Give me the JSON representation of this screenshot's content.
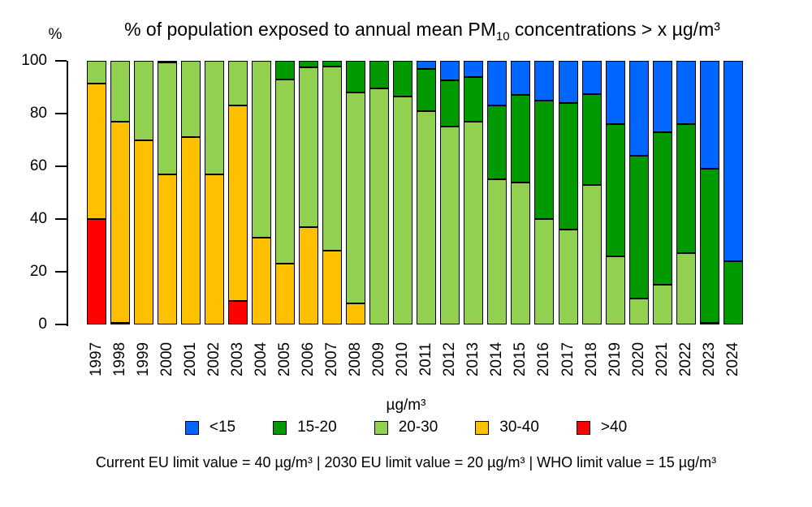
{
  "title": {
    "prefix": "% of population exposed to annual mean PM",
    "sub": "10",
    "suffix": " concentrations > x µg/m³"
  },
  "y_axis": {
    "label": "%",
    "ticks": [
      0,
      20,
      40,
      60,
      80,
      100
    ]
  },
  "legend": {
    "title": "µg/m³",
    "entries": [
      {
        "label": "<15",
        "color": "#0066FF"
      },
      {
        "label": "15-20",
        "color": "#009900"
      },
      {
        "label": "20-30",
        "color": "#92D050"
      },
      {
        "label": "30-40",
        "color": "#FFC000"
      },
      {
        "label": ">40",
        "color": "#FF0000"
      }
    ]
  },
  "footnote": "Current EU limit value = 40 µg/m³ | 2030 EU limit value = 20 µg/m³ | WHO limit value = 15 µg/m³",
  "chart_data": {
    "type": "bar",
    "stacked": true,
    "title": "% of population exposed to annual mean PM10 concentrations > x µg/m³",
    "xlabel": "",
    "ylabel": "%",
    "ylim": [
      0,
      100
    ],
    "grid": false,
    "legend_position": "bottom",
    "categories": [
      1997,
      1998,
      1999,
      2000,
      2001,
      2002,
      2003,
      2004,
      2005,
      2006,
      2007,
      2008,
      2009,
      2010,
      2011,
      2012,
      2013,
      2014,
      2015,
      2016,
      2017,
      2018,
      2019,
      2020,
      2021,
      2022,
      2023,
      2024
    ],
    "series": [
      {
        "name": ">40",
        "color": "#FF0000",
        "values": [
          40,
          0.5,
          0,
          0,
          0,
          0,
          9,
          0,
          0,
          0,
          0,
          0,
          0,
          0,
          0,
          0,
          0,
          0,
          0,
          0,
          0,
          0,
          0,
          0,
          0,
          0,
          0,
          0
        ]
      },
      {
        "name": "30-40",
        "color": "#FFC000",
        "values": [
          51.5,
          76.5,
          70,
          57,
          71,
          57,
          74,
          33,
          23,
          37,
          28,
          8,
          0,
          0,
          0,
          0,
          0,
          0,
          0,
          0,
          0,
          0,
          0,
          0,
          0,
          0,
          0,
          0
        ]
      },
      {
        "name": "20-30",
        "color": "#92D050",
        "values": [
          8.5,
          23,
          30,
          42.5,
          29,
          43,
          17,
          67,
          70,
          60.5,
          70,
          80,
          89.5,
          86.5,
          81,
          75,
          77,
          55,
          54,
          40,
          36,
          53,
          26,
          10,
          15,
          27,
          0.5,
          0
        ]
      },
      {
        "name": "15-20",
        "color": "#009900",
        "values": [
          0,
          0,
          0,
          0.5,
          0,
          0,
          0,
          0,
          7,
          2.5,
          2,
          12,
          10.5,
          13.5,
          16,
          17.5,
          17,
          28,
          33,
          45,
          48,
          34.5,
          50,
          54,
          58,
          49,
          58.5,
          24
        ]
      },
      {
        "name": "<15",
        "color": "#0066FF",
        "values": [
          0,
          0,
          0,
          0,
          0,
          0,
          0,
          0,
          0,
          0,
          0,
          0,
          0,
          0,
          3,
          7.5,
          6,
          17,
          13,
          15,
          16,
          12.5,
          24,
          36,
          27,
          24,
          41,
          76
        ]
      }
    ]
  }
}
